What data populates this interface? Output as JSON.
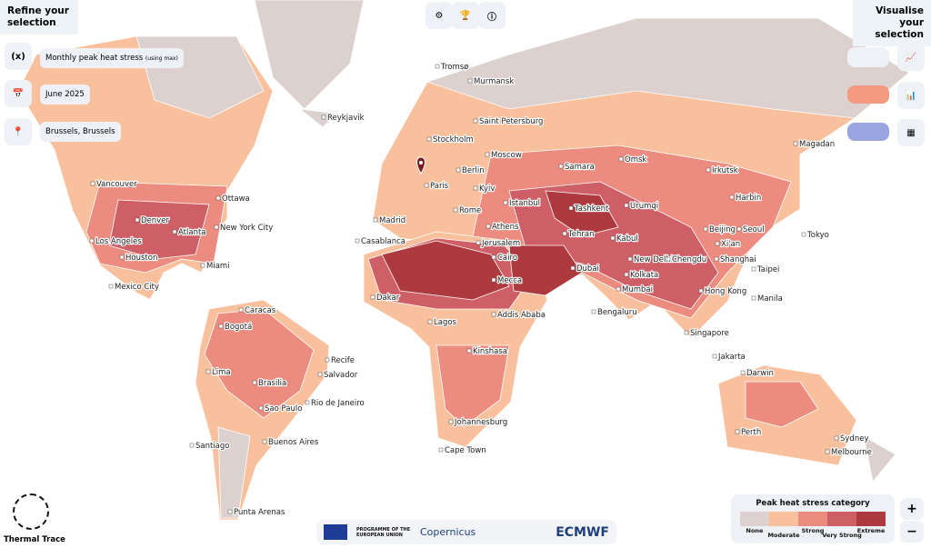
{
  "header": {
    "left_title": "Refine your selection",
    "right_title": "Visualise your selection"
  },
  "filters": {
    "variable_icon": "(x)",
    "variable": "Monthly peak heat stress",
    "variable_note": "(using max)",
    "date": "June 2025",
    "location": "Brussels, Brussels"
  },
  "cities": [
    "Tromsø",
    "Murmansk",
    "Reykjavik",
    "Saint Petersburg",
    "Stockholm",
    "Moscow",
    "Samara",
    "Omsk",
    "Irkutsk",
    "Magadan",
    "Berlin",
    "Paris",
    "Kyiv",
    "Harbin",
    "Vancouver",
    "Ottawa",
    "Madrid",
    "Rome",
    "Istanbul",
    "Tashkent",
    "Urumqi",
    "Denver",
    "Atlanta",
    "New York City",
    "Athens",
    "Beijing",
    "Seoul",
    "Tokyo",
    "Los Angeles",
    "Casablanca",
    "Jerusalem",
    "Tehran",
    "Kabul",
    "Xi'an",
    "Cairo",
    "New Delhi",
    "Chengdu",
    "Shanghai",
    "Houston",
    "Miami",
    "Dubai",
    "Taipei",
    "Kolkata",
    "Mecca",
    "Mexico City",
    "Dakar",
    "Hong Kong",
    "Mumbai",
    "Manila",
    "Caracas",
    "Addis Ababa",
    "Lagos",
    "Bengaluru",
    "Bogotá",
    "Singapore",
    "Kinshasa",
    "Recife",
    "Lima",
    "Salvador",
    "Jakarta",
    "Darwin",
    "Brasilia",
    "Sao Paulo",
    "Rio de Janeiro",
    "Johannesburg",
    "Perth",
    "Sydney",
    "Melbourne",
    "Cape Town",
    "Buenos Aires",
    "Santiago",
    "Punta Arenas"
  ],
  "legend": {
    "title": "Peak heat stress category",
    "categories": [
      "None",
      "Moderate",
      "Strong",
      "Very Strong",
      "Extreme"
    ],
    "colors": [
      "#dcd1ce",
      "#f8c09c",
      "#ec8b7f",
      "#cf5f66",
      "#ad3a3f"
    ]
  },
  "brand": "Thermal Trace",
  "footer": {
    "eu": "PROGRAMME OF THE EUROPEAN UNION",
    "copernicus": "Copernicus",
    "ecmwf": "ECMWF"
  },
  "zoom": {
    "in": "+",
    "out": "−"
  }
}
